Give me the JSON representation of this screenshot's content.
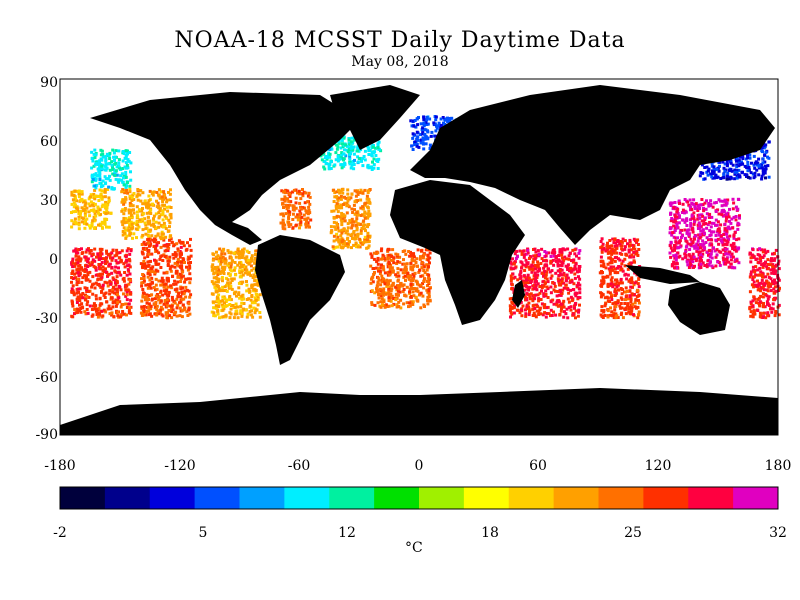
{
  "title": "NOAA-18 MCSST Daily Daytime Data",
  "subtitle": "May 08, 2018",
  "map": {
    "lon_range": [
      -180,
      180
    ],
    "lat_range": [
      -90,
      90
    ],
    "x_ticks": [
      "-180",
      "-120",
      "-60",
      "0",
      "60",
      "120",
      "180"
    ],
    "y_ticks": [
      "90",
      "60",
      "30",
      "0",
      "-30",
      "-60",
      "-90"
    ],
    "land_color": "#000000",
    "no_data_color": "#ffffff"
  },
  "colorbar": {
    "min": -2,
    "max": 32,
    "tick_labels": [
      "-2",
      "5",
      "12",
      "18",
      "25",
      "32"
    ],
    "unit": "°C",
    "colors": [
      "#00003c",
      "#00008c",
      "#0000dc",
      "#0050ff",
      "#00a0ff",
      "#00eeff",
      "#00f0a0",
      "#00e000",
      "#a0f000",
      "#ffff00",
      "#ffd000",
      "#ffa000",
      "#ff7000",
      "#ff3000",
      "#ff0040",
      "#e000c0"
    ]
  },
  "swaths": [
    {
      "lon_w": -175,
      "lon_e": -145,
      "lat_s": -30,
      "lat_n": 5,
      "sst": 27
    },
    {
      "lon_w": -140,
      "lon_e": -115,
      "lat_s": -30,
      "lat_n": 10,
      "sst": 26
    },
    {
      "lon_w": -150,
      "lon_e": -125,
      "lat_s": 10,
      "lat_n": 35,
      "sst": 22
    },
    {
      "lon_w": -175,
      "lon_e": -155,
      "lat_s": 15,
      "lat_n": 35,
      "sst": 21
    },
    {
      "lon_w": -165,
      "lon_e": -145,
      "lat_s": 35,
      "lat_n": 55,
      "sst": 10
    },
    {
      "lon_w": -105,
      "lon_e": -80,
      "lat_s": -30,
      "lat_n": 5,
      "sst": 22
    },
    {
      "lon_w": -70,
      "lon_e": -55,
      "lat_s": 15,
      "lat_n": 35,
      "sst": 25
    },
    {
      "lon_w": -45,
      "lon_e": -25,
      "lat_s": 5,
      "lat_n": 35,
      "sst": 23
    },
    {
      "lon_w": -25,
      "lon_e": 5,
      "lat_s": -25,
      "lat_n": 5,
      "sst": 25
    },
    {
      "lon_w": 45,
      "lon_e": 80,
      "lat_s": -30,
      "lat_n": 5,
      "sst": 28
    },
    {
      "lon_w": 90,
      "lon_e": 110,
      "lat_s": -30,
      "lat_n": 10,
      "sst": 27
    },
    {
      "lon_w": 125,
      "lon_e": 160,
      "lat_s": -5,
      "lat_n": 30,
      "sst": 30
    },
    {
      "lon_w": 165,
      "lon_e": 180,
      "lat_s": -30,
      "lat_n": 5,
      "sst": 28
    },
    {
      "lon_w": -50,
      "lon_e": -20,
      "lat_s": 45,
      "lat_n": 62,
      "sst": 10
    },
    {
      "lon_w": -5,
      "lon_e": 35,
      "lat_s": 55,
      "lat_n": 72,
      "sst": 5
    },
    {
      "lon_w": 140,
      "lon_e": 175,
      "lat_s": 40,
      "lat_n": 60,
      "sst": 4
    }
  ]
}
